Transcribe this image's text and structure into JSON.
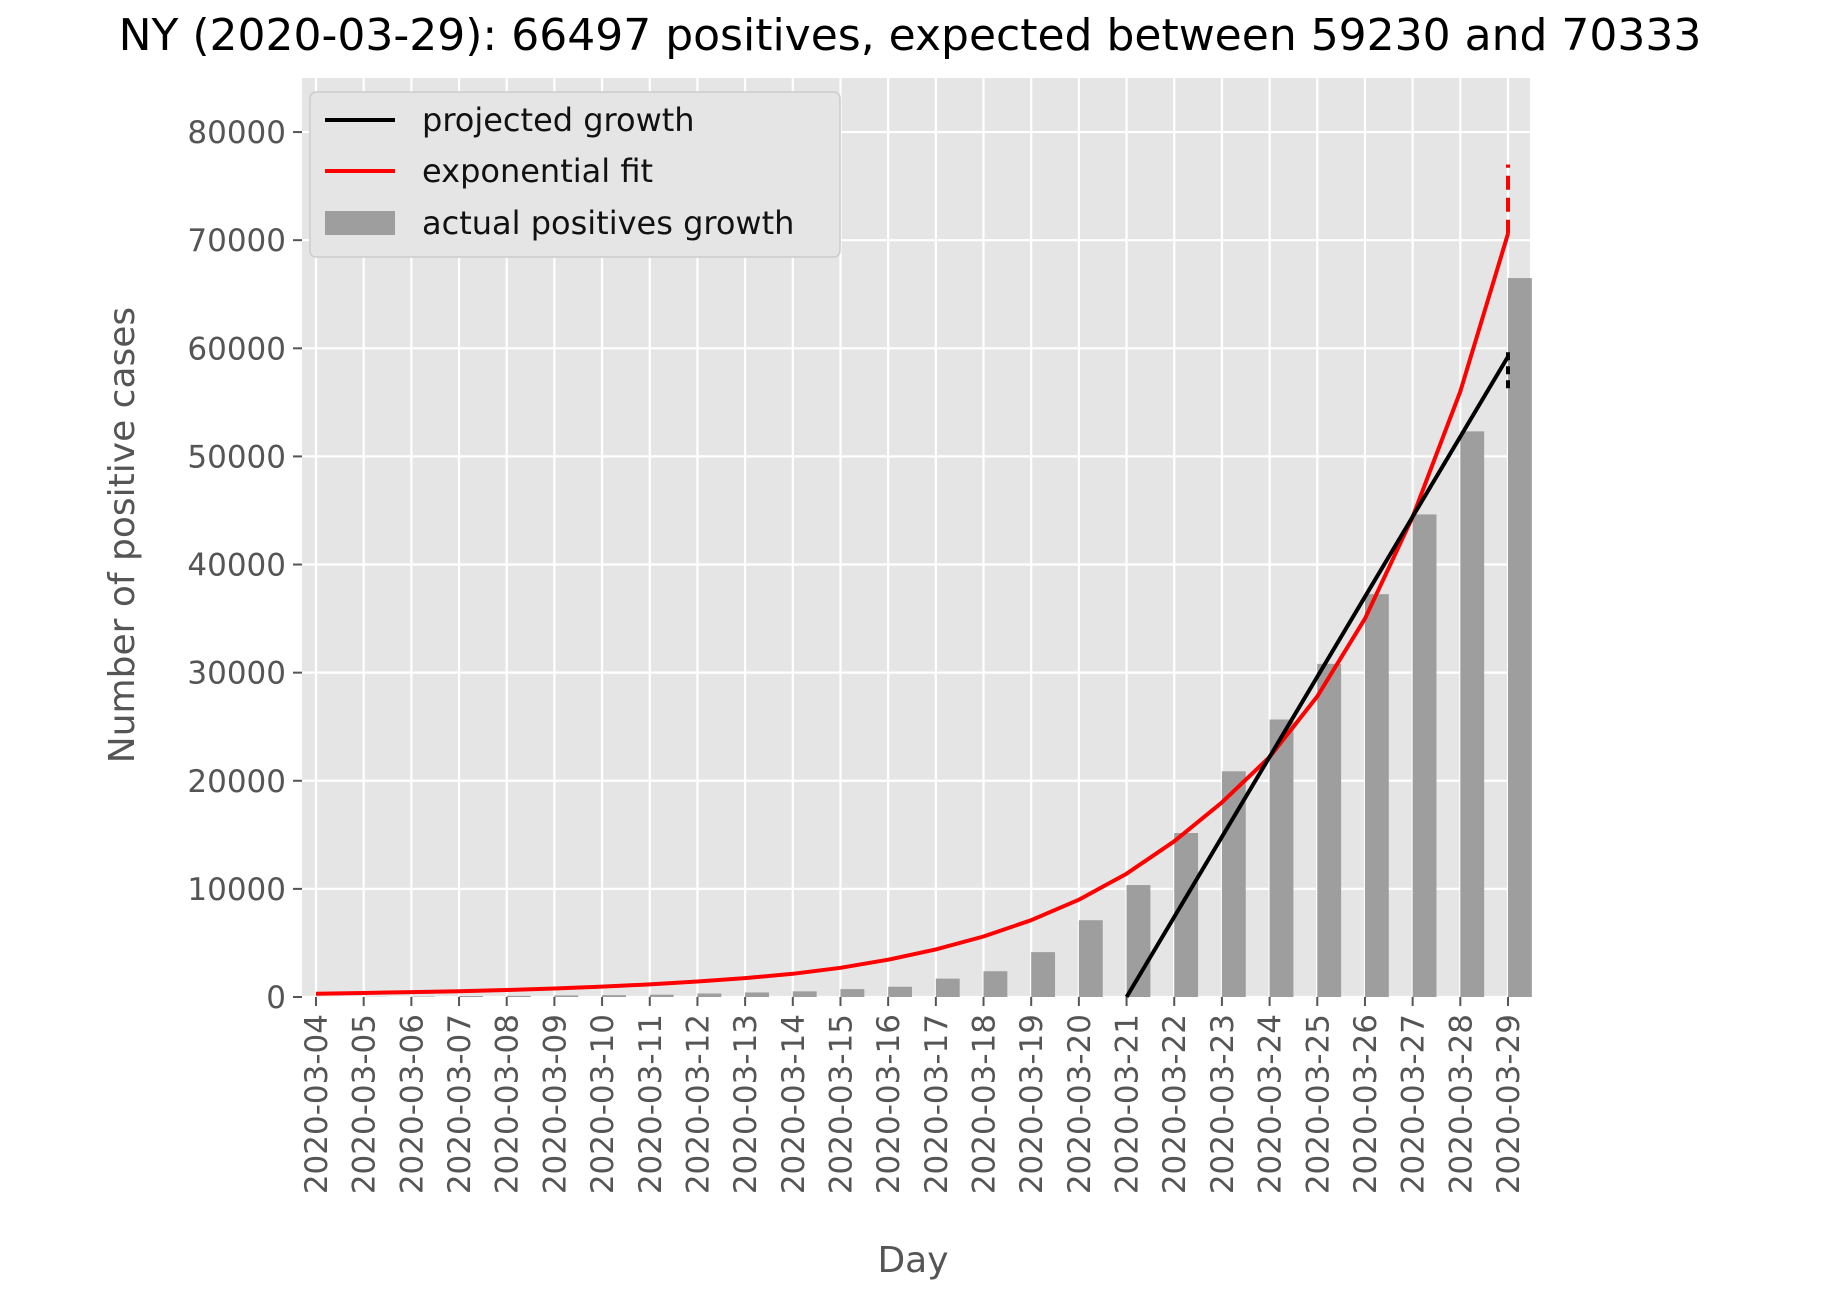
{
  "chart_data": {
    "type": "bar",
    "title": "NY (2020-03-29): 66497 positives, expected between 59230 and 70333",
    "xlabel": "Day",
    "ylabel": "Number of positive cases",
    "ylim": [
      0,
      85000
    ],
    "yticks": [
      0,
      10000,
      20000,
      30000,
      40000,
      50000,
      60000,
      70000,
      80000
    ],
    "grid": true,
    "legend_position": "top-left",
    "categories": [
      "2020-03-04",
      "2020-03-05",
      "2020-03-06",
      "2020-03-07",
      "2020-03-08",
      "2020-03-09",
      "2020-03-10",
      "2020-03-11",
      "2020-03-12",
      "2020-03-13",
      "2020-03-14",
      "2020-03-15",
      "2020-03-16",
      "2020-03-17",
      "2020-03-18",
      "2020-03-19",
      "2020-03-20",
      "2020-03-21",
      "2020-03-22",
      "2020-03-23",
      "2020-03-24",
      "2020-03-25",
      "2020-03-26",
      "2020-03-27",
      "2020-03-28",
      "2020-03-29"
    ],
    "series": [
      {
        "name": "actual positives growth",
        "kind": "bar",
        "color": "#9e9e9e",
        "values": [
          11,
          22,
          44,
          89,
          106,
          142,
          173,
          217,
          326,
          421,
          524,
          729,
          950,
          1700,
          2382,
          4152,
          7102,
          10356,
          15168,
          20875,
          25665,
          30811,
          37258,
          44635,
          52318,
          66497
        ]
      },
      {
        "name": "exponential fit",
        "kind": "line",
        "color": "#ff0000",
        "values": [
          300,
          370,
          450,
          540,
          650,
          790,
          960,
          1170,
          1430,
          1750,
          2150,
          2700,
          3450,
          4400,
          5600,
          7100,
          9000,
          11400,
          14400,
          18000,
          22200,
          27800,
          35000,
          44400,
          56000,
          70600
        ],
        "uncertainty_at_last": [
          70600,
          77000
        ]
      },
      {
        "name": "projected growth",
        "kind": "line",
        "color": "#000000",
        "x": [
          "2020-03-21",
          "2020-03-29"
        ],
        "values": [
          0,
          59230
        ],
        "uncertainty_at_last": [
          56300,
          59800
        ]
      }
    ]
  }
}
